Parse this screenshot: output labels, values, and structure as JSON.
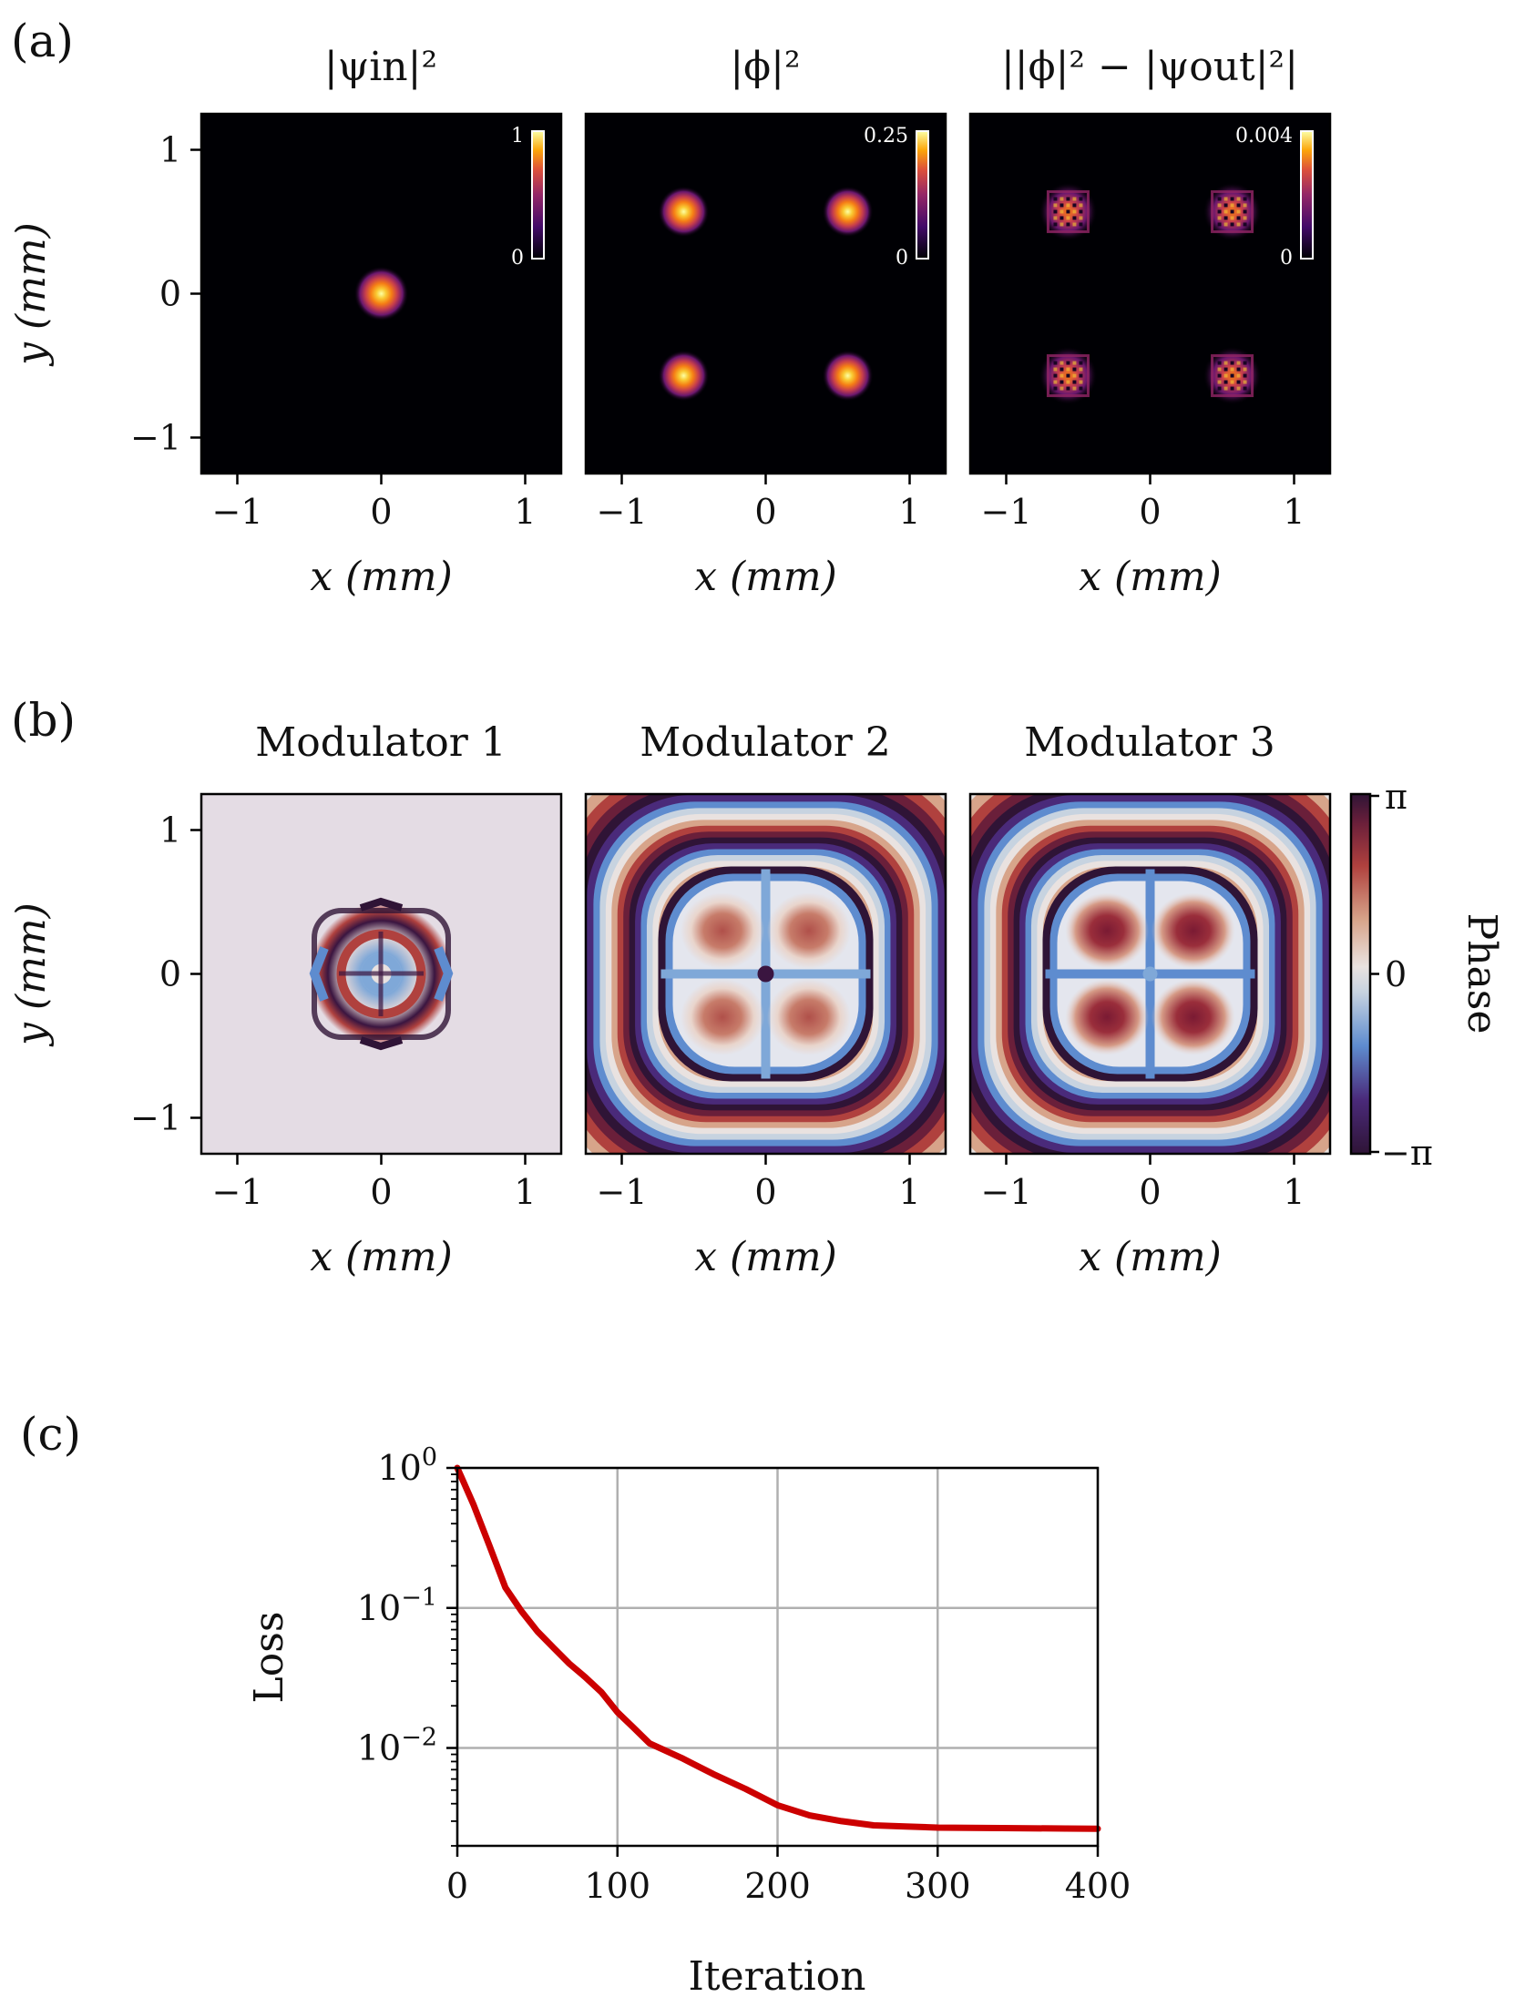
{
  "panel_labels": [
    "(a)",
    "(b)",
    "(c)"
  ],
  "row_a": {
    "titles": [
      "|ψin|²",
      "|ϕ|²",
      "||ϕ|² − |ψout|²|"
    ],
    "colorbars": [
      {
        "max": "1",
        "min": "0"
      },
      {
        "max": "0.25",
        "min": "0"
      },
      {
        "max": "0.004",
        "min": "0"
      }
    ]
  },
  "row_b": {
    "titles": [
      "Modulator 1",
      "Modulator 2",
      "Modulator 3"
    ],
    "colorbar": {
      "label": "Phase",
      "ticks": [
        "π",
        "0",
        "−π"
      ]
    }
  },
  "spatial_axes": {
    "xlabel": "x (mm)",
    "ylabel": "y (mm)",
    "ticks": [
      "−1",
      "0",
      "1"
    ],
    "tick_values": [
      -1,
      0,
      1
    ],
    "range": [
      -1.25,
      1.25
    ]
  },
  "colors": {
    "heatmap_bg": "#000004",
    "inferno_peak": "#fcffa4",
    "phase_neg": "#2f1436",
    "phase_mid": "#e2d9e2",
    "phase_pos": "#b0413e",
    "phase_blue": "#5e8ccf",
    "loss_line": "#cc0000",
    "grid": "#b0b0b0"
  },
  "chart_data": [
    {
      "type": "heatmap",
      "title": "|ψin|²",
      "xlabel": "x (mm)",
      "ylabel": "y (mm)",
      "xlim": [
        -1.25,
        1.25
      ],
      "ylim": [
        -1.25,
        1.25
      ],
      "colorbar_range": [
        0,
        1
      ],
      "spots": [
        [
          0,
          0
        ]
      ]
    },
    {
      "type": "heatmap",
      "title": "|ϕ|²",
      "xlabel": "x (mm)",
      "xlim": [
        -1.25,
        1.25
      ],
      "ylim": [
        -1.25,
        1.25
      ],
      "colorbar_range": [
        0,
        0.25
      ],
      "spots": [
        [
          -0.57,
          0.57
        ],
        [
          0.57,
          0.57
        ],
        [
          -0.57,
          -0.57
        ],
        [
          0.57,
          -0.57
        ]
      ]
    },
    {
      "type": "heatmap",
      "title": "||ϕ|² − |ψout|²|",
      "xlabel": "x (mm)",
      "xlim": [
        -1.25,
        1.25
      ],
      "ylim": [
        -1.25,
        1.25
      ],
      "colorbar_range": [
        0,
        0.004
      ],
      "spots": [
        [
          -0.57,
          0.57
        ],
        [
          0.57,
          0.57
        ],
        [
          -0.57,
          -0.57
        ],
        [
          0.57,
          -0.57
        ]
      ]
    },
    {
      "type": "heatmap",
      "title": "Modulator 1",
      "xlabel": "x (mm)",
      "ylabel": "y (mm)",
      "xlim": [
        -1.25,
        1.25
      ],
      "ylim": [
        -1.25,
        1.25
      ],
      "colorbar_range": [
        "−π",
        "π"
      ],
      "pattern_radius": 0.5
    },
    {
      "type": "heatmap",
      "title": "Modulator 2",
      "xlabel": "x (mm)",
      "xlim": [
        -1.25,
        1.25
      ],
      "ylim": [
        -1.25,
        1.25
      ],
      "colorbar_range": [
        "−π",
        "π"
      ],
      "lobes": [
        [
          -0.3,
          0.3
        ],
        [
          0.3,
          0.3
        ],
        [
          -0.3,
          -0.3
        ],
        [
          0.3,
          -0.3
        ]
      ]
    },
    {
      "type": "heatmap",
      "title": "Modulator 3",
      "xlabel": "x (mm)",
      "xlim": [
        -1.25,
        1.25
      ],
      "ylim": [
        -1.25,
        1.25
      ],
      "colorbar_range": [
        "−π",
        "π"
      ],
      "lobes": [
        [
          -0.3,
          0.3
        ],
        [
          0.3,
          0.3
        ],
        [
          -0.3,
          -0.3
        ],
        [
          0.3,
          -0.3
        ]
      ]
    },
    {
      "type": "line",
      "xlabel": "Iteration",
      "ylabel": "Loss",
      "yscale": "log",
      "xlim": [
        0,
        400
      ],
      "ylim": [
        0.002,
        1
      ],
      "xticks": [
        0,
        100,
        200,
        300,
        400
      ],
      "xtick_labels": [
        "0",
        "100",
        "200",
        "300",
        "400"
      ],
      "yticks": [
        1,
        0.1,
        0.01
      ],
      "ytick_labels": [
        {
          "base": "10",
          "exp": "0"
        },
        {
          "base": "10",
          "exp": "−1"
        },
        {
          "base": "10",
          "exp": "−2"
        }
      ],
      "grid": true,
      "x": [
        0,
        10,
        20,
        30,
        40,
        50,
        60,
        70,
        80,
        90,
        100,
        110,
        120,
        140,
        160,
        180,
        200,
        220,
        240,
        260,
        280,
        300,
        340,
        380,
        400
      ],
      "y": [
        1.0,
        0.55,
        0.28,
        0.14,
        0.095,
        0.068,
        0.052,
        0.04,
        0.032,
        0.025,
        0.018,
        0.014,
        0.0108,
        0.0085,
        0.0065,
        0.0051,
        0.0039,
        0.0033,
        0.003,
        0.0028,
        0.00275,
        0.0027,
        0.00268,
        0.00266,
        0.00265
      ]
    }
  ]
}
